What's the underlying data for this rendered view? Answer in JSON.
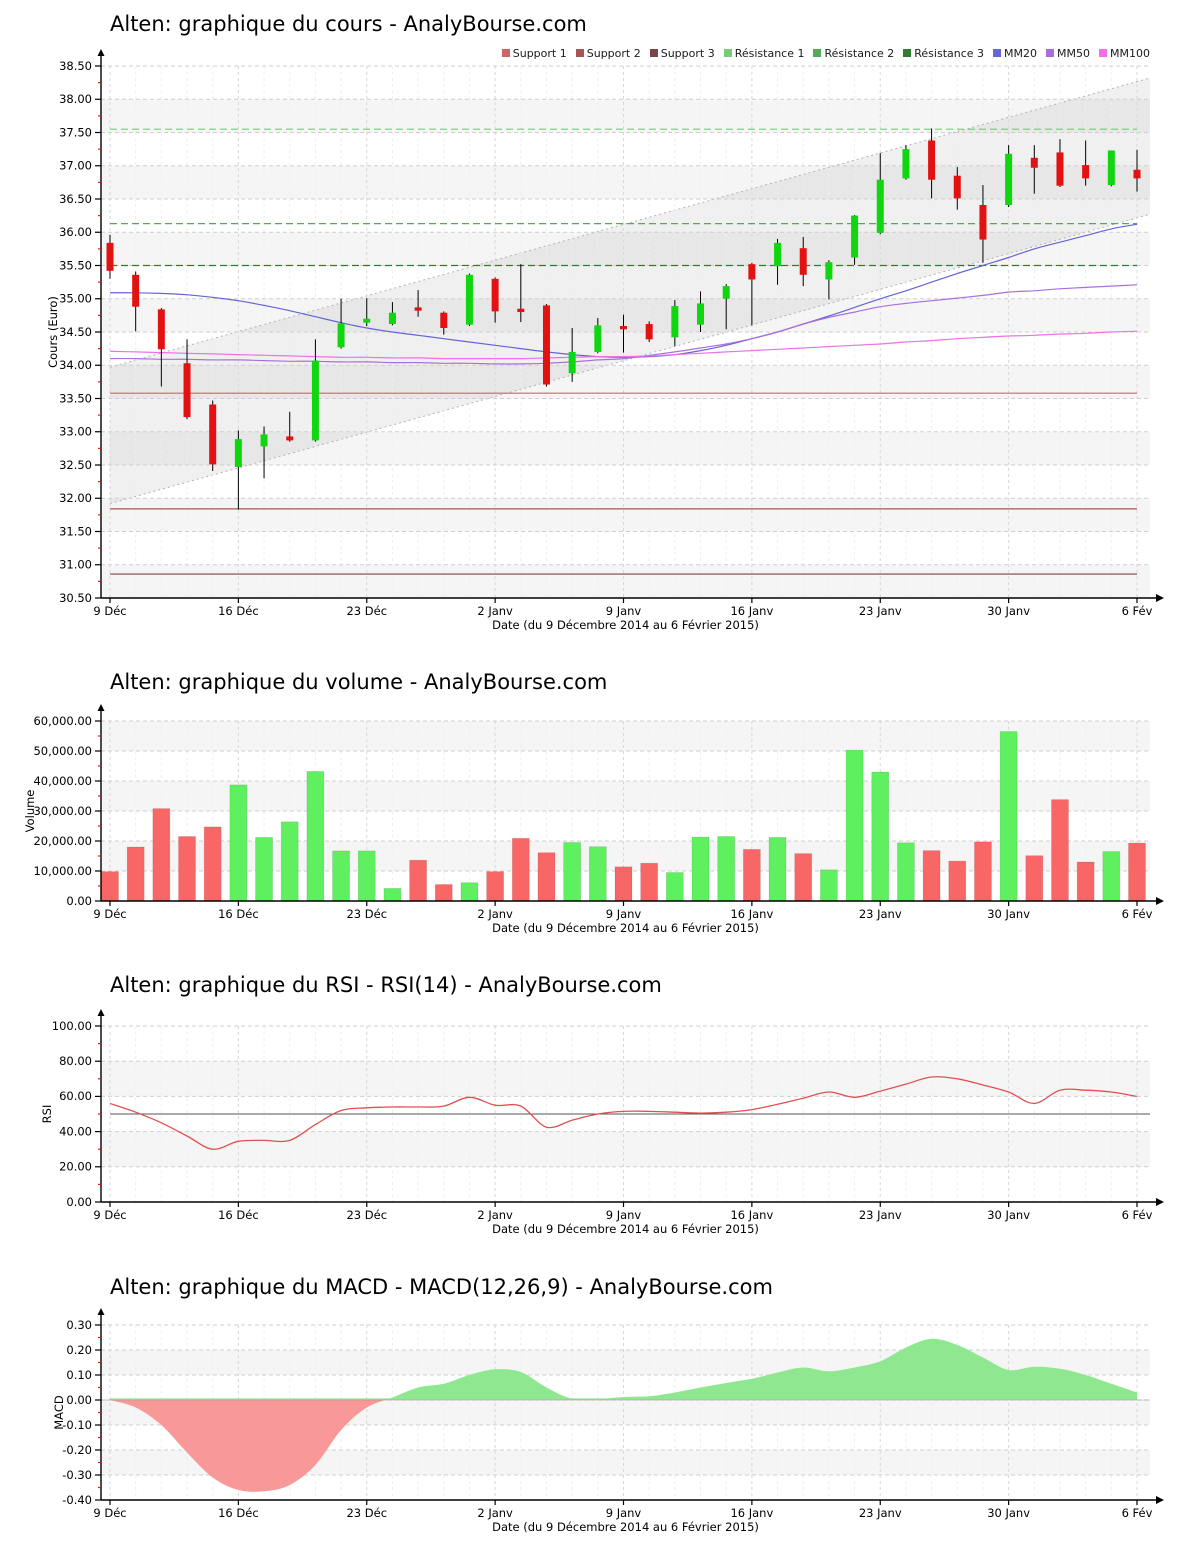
{
  "page": {
    "background": "#ffffff",
    "x_axis_title": "Date (du 9 Décembre 2014 au 6 Février 2015)",
    "x_tick_labels": [
      "9 Déc",
      "16 Déc",
      "23 Déc",
      "2 Janv",
      "9 Janv",
      "16 Janv",
      "23 Janv",
      "30 Janv",
      "6 Fév"
    ],
    "x_tick_indices": [
      0,
      5,
      10,
      15,
      20,
      25,
      30,
      35,
      40
    ]
  },
  "chart_data": [
    {
      "type": "candlestick",
      "title": "Alten: graphique du cours - AnalyBourse.com",
      "ylabel": "Cours (Euro)",
      "xlabel": "Date (du 9 Décembre 2014 au 6 Février 2015)",
      "ylim": [
        30.5,
        38.5
      ],
      "y_tick_labels": [
        "38.50",
        "38.00",
        "37.50",
        "37.00",
        "36.50",
        "36.00",
        "35.50",
        "35.00",
        "34.50",
        "34.00",
        "33.50",
        "33.00",
        "32.50",
        "32.00",
        "31.50",
        "31.00",
        "30.50"
      ],
      "x_tick_labels": [
        "9 Déc",
        "16 Déc",
        "23 Déc",
        "2 Janv",
        "9 Janv",
        "16 Janv",
        "23 Janv",
        "30 Janv",
        "6 Fév"
      ],
      "x_tick_indices": [
        0,
        5,
        10,
        15,
        20,
        25,
        30,
        35,
        40
      ],
      "n_points": 41,
      "candles_ohlc": [
        [
          35.84,
          35.96,
          35.3,
          35.42
        ],
        [
          35.36,
          35.41,
          34.51,
          34.88
        ],
        [
          34.84,
          34.86,
          33.68,
          34.24
        ],
        [
          34.03,
          34.39,
          33.19,
          33.22
        ],
        [
          33.41,
          33.47,
          32.41,
          32.51
        ],
        [
          32.47,
          33.02,
          31.83,
          32.89
        ],
        [
          32.78,
          33.08,
          32.3,
          32.96
        ],
        [
          32.93,
          33.3,
          32.85,
          32.87
        ],
        [
          32.87,
          34.39,
          32.85,
          34.07
        ],
        [
          34.27,
          35.0,
          34.25,
          34.63
        ],
        [
          34.64,
          35.01,
          34.59,
          34.7
        ],
        [
          34.62,
          34.95,
          34.6,
          34.79
        ],
        [
          34.87,
          35.13,
          34.73,
          34.82
        ],
        [
          34.79,
          34.81,
          34.46,
          34.56
        ],
        [
          34.61,
          35.38,
          34.59,
          35.36
        ],
        [
          35.3,
          35.32,
          34.64,
          34.81
        ],
        [
          34.85,
          35.52,
          34.65,
          34.8
        ],
        [
          34.9,
          34.92,
          33.68,
          33.71
        ],
        [
          33.88,
          34.56,
          33.75,
          34.2
        ],
        [
          34.2,
          34.71,
          34.18,
          34.6
        ],
        [
          34.59,
          34.76,
          34.19,
          34.54
        ],
        [
          34.62,
          34.66,
          34.35,
          34.39
        ],
        [
          34.42,
          34.98,
          34.29,
          34.89
        ],
        [
          34.61,
          35.11,
          34.5,
          34.93
        ],
        [
          35.0,
          35.22,
          34.54,
          35.19
        ],
        [
          35.52,
          35.54,
          34.6,
          35.29
        ],
        [
          35.49,
          35.9,
          35.21,
          35.84
        ],
        [
          35.76,
          35.93,
          35.19,
          35.36
        ],
        [
          35.29,
          35.58,
          34.99,
          35.55
        ],
        [
          35.62,
          36.26,
          35.51,
          36.25
        ],
        [
          35.99,
          37.19,
          35.97,
          36.79
        ],
        [
          36.81,
          37.31,
          36.79,
          37.25
        ],
        [
          37.38,
          37.56,
          36.51,
          36.79
        ],
        [
          36.85,
          36.98,
          36.34,
          36.51
        ],
        [
          36.41,
          36.71,
          35.54,
          35.89
        ],
        [
          36.41,
          37.31,
          36.38,
          37.18
        ],
        [
          37.12,
          37.31,
          36.58,
          36.97
        ],
        [
          37.2,
          37.4,
          36.68,
          36.7
        ],
        [
          37.01,
          37.38,
          36.7,
          36.81
        ],
        [
          36.71,
          37.23,
          36.69,
          37.23
        ],
        [
          36.94,
          37.24,
          36.61,
          36.81
        ]
      ],
      "legend": [
        {
          "label": "Support 1",
          "color": "#cc6666"
        },
        {
          "label": "Support 2",
          "color": "#aa5555"
        },
        {
          "label": "Support 3",
          "color": "#7d4646"
        },
        {
          "label": "Résistance 1",
          "color": "#77cc77"
        },
        {
          "label": "Résistance 2",
          "color": "#55aa55"
        },
        {
          "label": "Résistance 3",
          "color": "#2e7d2e"
        },
        {
          "label": "MM20",
          "color": "#6565d6"
        },
        {
          "label": "MM50",
          "color": "#a96fe0"
        },
        {
          "label": "MM100",
          "color": "#ef6fe8"
        }
      ],
      "supports": [
        {
          "label": "Support 1",
          "value": 33.58,
          "color": "#cc6666"
        },
        {
          "label": "Support 2",
          "value": 31.84,
          "color": "#aa5555"
        },
        {
          "label": "Support 3",
          "value": 30.86,
          "color": "#7d4646"
        }
      ],
      "resistances": [
        {
          "label": "Résistance 1",
          "value": 37.55,
          "color": "#77cc77"
        },
        {
          "label": "Résistance 2",
          "value": 36.13,
          "color": "#55aa55"
        },
        {
          "label": "Résistance 3",
          "value": 35.5,
          "color": "#2e7d2e"
        }
      ],
      "moving_averages": [
        {
          "name": "MM20",
          "color": "#6565d6",
          "values": [
            35.09,
            35.09,
            35.08,
            35.06,
            35.02,
            34.97,
            34.9,
            34.82,
            34.73,
            34.64,
            34.56,
            34.5,
            34.45,
            34.4,
            34.35,
            34.3,
            34.25,
            34.2,
            34.16,
            34.13,
            34.12,
            34.13,
            34.16,
            34.22,
            34.3,
            34.4,
            34.5,
            34.62,
            34.74,
            34.87,
            35.0,
            35.12,
            35.25,
            35.38,
            35.5,
            35.62,
            35.75,
            35.85,
            35.95,
            36.05,
            36.12
          ]
        },
        {
          "name": "MM50",
          "color": "#a96fe0",
          "values": [
            34.1,
            34.1,
            34.09,
            34.09,
            34.08,
            34.08,
            34.07,
            34.06,
            34.06,
            34.05,
            34.05,
            34.04,
            34.04,
            34.03,
            34.03,
            34.02,
            34.02,
            34.03,
            34.05,
            34.08,
            34.1,
            34.15,
            34.2,
            34.26,
            34.32,
            34.4,
            34.5,
            34.62,
            34.72,
            34.8,
            34.88,
            34.93,
            34.97,
            35.01,
            35.05,
            35.1,
            35.12,
            35.15,
            35.17,
            35.19,
            35.21
          ]
        },
        {
          "name": "MM100",
          "color": "#ef6fe8",
          "values": [
            34.21,
            34.2,
            34.19,
            34.18,
            34.17,
            34.16,
            34.15,
            34.14,
            34.13,
            34.12,
            34.12,
            34.11,
            34.11,
            34.1,
            34.1,
            34.1,
            34.1,
            34.11,
            34.12,
            34.13,
            34.13,
            34.14,
            34.16,
            34.18,
            34.2,
            34.22,
            34.24,
            34.26,
            34.28,
            34.3,
            34.32,
            34.35,
            34.37,
            34.4,
            34.42,
            34.44,
            34.45,
            34.47,
            34.48,
            34.5,
            34.51
          ]
        }
      ],
      "trend_channel": {
        "lower_start": 31.92,
        "lower_end": 36.27,
        "upper_start": 33.97,
        "upper_end": 38.32,
        "line_color": "#b3b3b3",
        "fill_color": "rgba(160,160,160,0.16)"
      },
      "colors": {
        "up": "#0fd60f",
        "down": "#e31212",
        "wick": "#000000"
      }
    },
    {
      "type": "bar",
      "title": "Alten: graphique du volume - AnalyBourse.com",
      "ylabel": "Volume",
      "xlabel": "Date (du 9 Décembre 2014 au 6 Février 2015)",
      "ylim": [
        0,
        60000
      ],
      "y_tick_labels": [
        "60,000.00",
        "50,000.00",
        "40,000.00",
        "30,000.00",
        "20,000.00",
        "10,000.00",
        "0.00"
      ],
      "x_tick_labels": [
        "9 Déc",
        "16 Déc",
        "23 Déc",
        "2 Janv",
        "9 Janv",
        "16 Janv",
        "23 Janv",
        "30 Janv",
        "6 Fév"
      ],
      "x_tick_indices": [
        0,
        5,
        10,
        15,
        20,
        25,
        30,
        35,
        40
      ],
      "values": [
        9800,
        18000,
        30800,
        21500,
        24700,
        38700,
        21200,
        26400,
        43200,
        16700,
        16700,
        4200,
        13600,
        5500,
        6100,
        9800,
        20900,
        16100,
        19500,
        18100,
        11400,
        12600,
        9500,
        21300,
        21500,
        17200,
        21200,
        15800,
        10400,
        50300,
        43000,
        19400,
        16800,
        13300,
        19700,
        56500,
        15100,
        33800,
        13000,
        16500,
        19300
      ],
      "directions": [
        "down",
        "down",
        "down",
        "down",
        "down",
        "up",
        "up",
        "up",
        "up",
        "up",
        "up",
        "up",
        "down",
        "down",
        "up",
        "down",
        "down",
        "down",
        "up",
        "up",
        "down",
        "down",
        "up",
        "up",
        "up",
        "down",
        "up",
        "down",
        "up",
        "up",
        "up",
        "up",
        "down",
        "down",
        "down",
        "up",
        "down",
        "down",
        "down",
        "up",
        "down"
      ],
      "colors": {
        "up": "#5ef05e",
        "down": "#f96666"
      }
    },
    {
      "type": "line",
      "title": "Alten: graphique du RSI - RSI(14) - AnalyBourse.com",
      "ylabel": "RSI",
      "xlabel": "Date (du 9 Décembre 2014 au 6 Février 2015)",
      "ylim": [
        0,
        100
      ],
      "y_tick_labels": [
        "100.00",
        "80.00",
        "60.00",
        "40.00",
        "20.00",
        "0.00"
      ],
      "x_tick_labels": [
        "9 Déc",
        "16 Déc",
        "23 Déc",
        "2 Janv",
        "9 Janv",
        "16 Janv",
        "23 Janv",
        "30 Janv",
        "6 Fév"
      ],
      "x_tick_indices": [
        0,
        5,
        10,
        15,
        20,
        25,
        30,
        35,
        40
      ],
      "values": [
        56,
        51,
        45,
        37.5,
        30,
        34.5,
        35,
        35,
        44,
        52,
        53.5,
        54,
        54,
        54.5,
        59.5,
        55,
        54.5,
        42.5,
        46.5,
        50,
        51.5,
        51.5,
        51,
        50.5,
        51,
        52.5,
        55.5,
        59,
        62.5,
        59.5,
        63,
        67,
        71,
        70,
        66.5,
        62.5,
        56,
        63.5,
        63.5,
        62.5,
        60
      ],
      "midline": 50,
      "colors": {
        "line": "#e05050",
        "midline": "#555555"
      }
    },
    {
      "type": "area",
      "title": "Alten: graphique du MACD - MACD(12,26,9) - AnalyBourse.com",
      "ylabel": "MACD",
      "xlabel": "Date (du 9 Décembre 2014 au 6 Février 2015)",
      "ylim": [
        -0.4,
        0.3
      ],
      "y_tick_labels": [
        "0.30",
        "0.20",
        "0.10",
        "0.00",
        "-0.10",
        "-0.20",
        "-0.30",
        "-0.40"
      ],
      "x_tick_labels": [
        "9 Déc",
        "16 Déc",
        "23 Déc",
        "2 Janv",
        "9 Janv",
        "16 Janv",
        "23 Janv",
        "30 Janv",
        "6 Fév"
      ],
      "x_tick_indices": [
        0,
        5,
        10,
        15,
        20,
        25,
        30,
        35,
        40
      ],
      "values": [
        0.0,
        -0.03,
        -0.1,
        -0.21,
        -0.31,
        -0.36,
        -0.365,
        -0.34,
        -0.26,
        -0.12,
        -0.03,
        0.01,
        0.05,
        0.065,
        0.1,
        0.123,
        0.112,
        0.05,
        0.005,
        0.004,
        0.012,
        0.015,
        0.03,
        0.05,
        0.068,
        0.085,
        0.11,
        0.13,
        0.115,
        0.13,
        0.155,
        0.21,
        0.245,
        0.22,
        0.17,
        0.12,
        0.133,
        0.125,
        0.1,
        0.065,
        0.03
      ],
      "colors": {
        "positive": "#8fe88f",
        "negative": "#f89898"
      }
    }
  ]
}
